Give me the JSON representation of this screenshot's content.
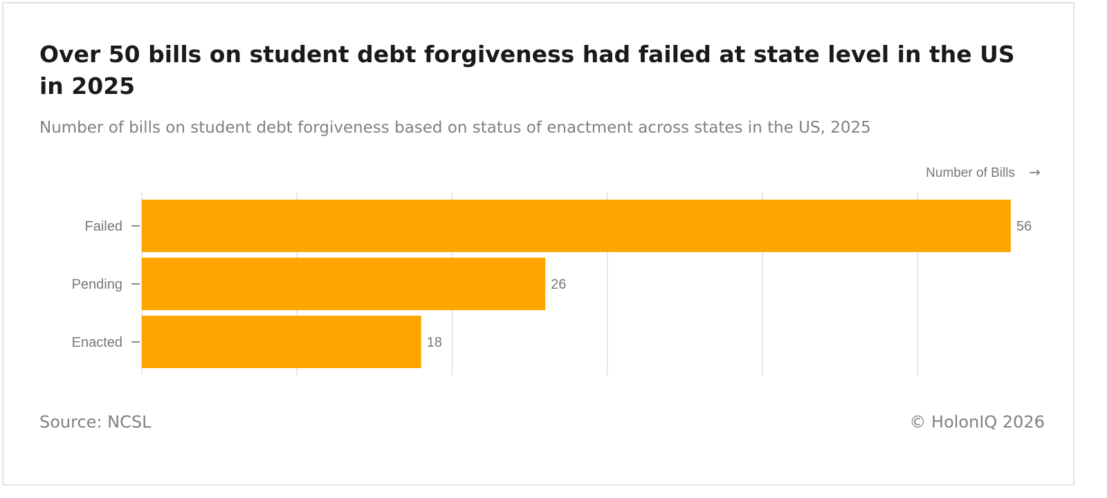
{
  "title": "Over 50 bills on student debt forgiveness had failed at state level in the US in 2025",
  "subtitle": "Number of bills on student debt forgiveness based on status of enactment across states in the US, 2025",
  "source": "Source: NCSL",
  "copyright": "© HolonIQ 2026",
  "colors": {
    "bar": "#FFA500",
    "grid": "#e6e6e6",
    "text": "#808080"
  },
  "chart_data": {
    "type": "bar",
    "orientation": "horizontal",
    "categories": [
      "Failed",
      "Pending",
      "Enacted"
    ],
    "values": [
      56,
      26,
      18
    ],
    "data_labels": [
      "56",
      "26",
      "18"
    ],
    "xlabel": "Number of Bills →",
    "ylabel": "",
    "xlim": [
      0,
      56
    ],
    "x_gridlines": [
      0,
      10,
      20,
      30,
      40,
      50
    ],
    "grid": true,
    "legend": "none"
  }
}
